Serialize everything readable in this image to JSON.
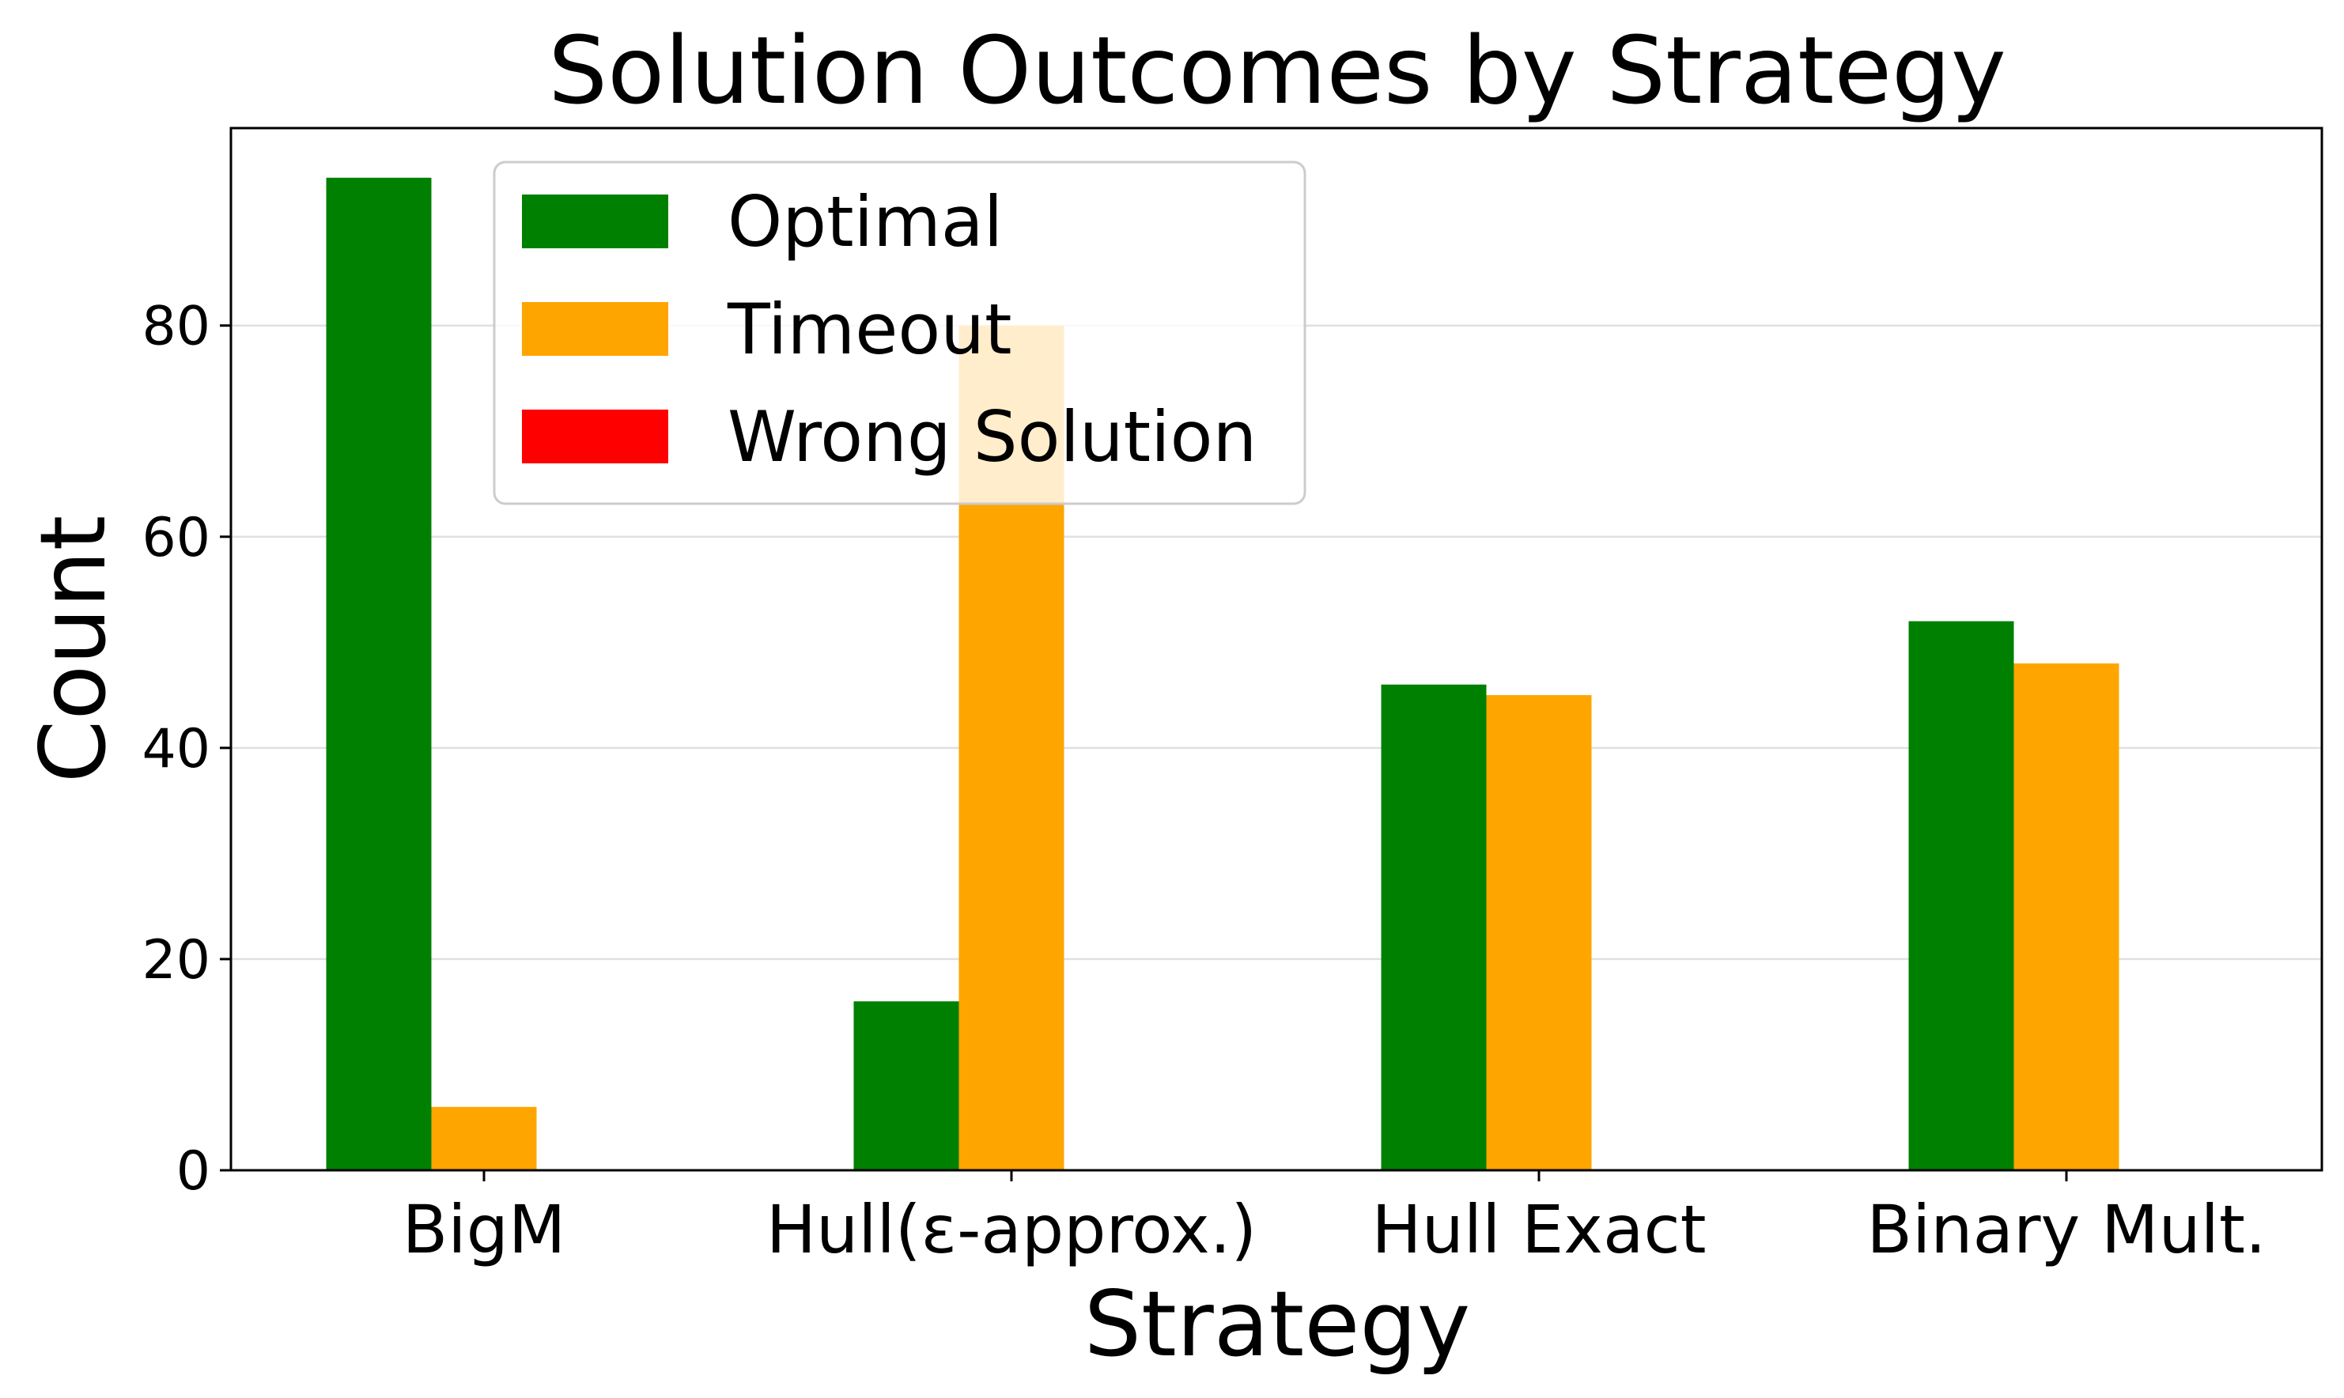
{
  "chart_data": {
    "type": "bar",
    "title": "Solution Outcomes by Strategy",
    "xlabel": "Strategy",
    "ylabel": "Count",
    "categories": [
      "BigM",
      "Hull(ε-approx.)",
      "Hull Exact",
      "Binary Mult."
    ],
    "series": [
      {
        "name": "Optimal",
        "color": "#008000",
        "values": [
          94,
          16,
          46,
          52
        ]
      },
      {
        "name": "Timeout",
        "color": "#FFA500",
        "values": [
          6,
          80,
          45,
          48
        ]
      },
      {
        "name": "Wrong Solution",
        "color": "#FF0000",
        "values": [
          0,
          0,
          0,
          0
        ]
      }
    ],
    "yticks": [
      "0",
      "20",
      "40",
      "60",
      "80"
    ],
    "ylim": [
      0,
      98.7
    ],
    "grid": true,
    "legend_position": "top-left"
  }
}
